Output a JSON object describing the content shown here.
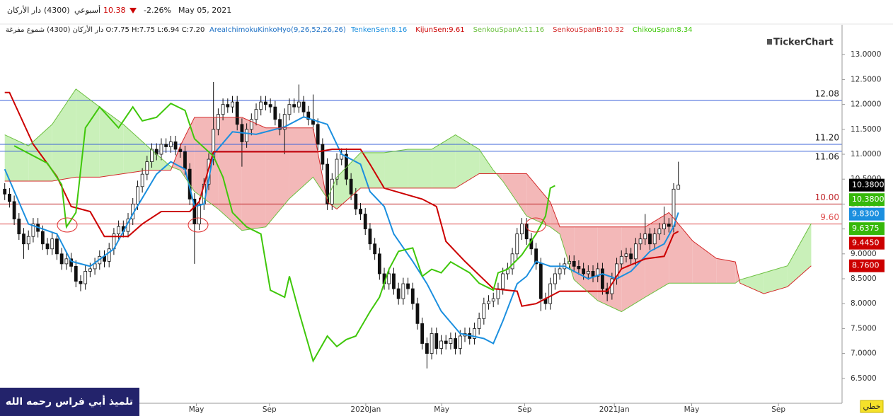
{
  "header": {
    "name": "دار الأركان",
    "code": "(4300)",
    "period": "أسبوعي",
    "price": "10.38",
    "change": "-2.26%",
    "date": "May 05, 2021",
    "info": "دار الأركان (4300) شموع مفرغة O:7.75 H:7.75 L:6.94 C:7.20",
    "indicator": "AreaIchimokuKinkoHyo(9,26,52,26,26)",
    "logo": "TickerChart",
    "footer": "تلميذ أبي فراس رحمه الله",
    "button": "خطي"
  },
  "chart_data": {
    "type": "candlestick",
    "xlim": [
      -1,
      176.5
    ],
    "ylim": [
      6.0,
      13.6
    ],
    "xticks": [
      {
        "value": 40.4,
        "label": "May"
      },
      {
        "value": 55.8,
        "label": "Sep"
      },
      {
        "value": 76.1,
        "label": "2020Jan"
      },
      {
        "value": 92.1,
        "label": "May"
      },
      {
        "value": 109.6,
        "label": "Sep"
      },
      {
        "value": 128.5,
        "label": "2021Jan"
      },
      {
        "value": 144.8,
        "label": "May"
      },
      {
        "value": 163.1,
        "label": "Sep"
      }
    ],
    "yticks": [
      {
        "value": 13,
        "label": "13.0000"
      },
      {
        "value": 12.5,
        "label": "12.5000"
      },
      {
        "value": 12,
        "label": "12.0000"
      },
      {
        "value": 11.5,
        "label": "11.5000"
      },
      {
        "value": 11,
        "label": "11.0000"
      },
      {
        "value": 10.5,
        "label": "10.5000"
      },
      {
        "value": 10,
        "label": "10.0000"
      },
      {
        "value": 9.5,
        "label": "9.5000"
      },
      {
        "value": 9,
        "label": "9.0000"
      },
      {
        "value": 8.5,
        "label": "8.5000"
      },
      {
        "value": 8,
        "label": "8.0000"
      },
      {
        "value": 7.5,
        "label": "7.5000"
      },
      {
        "value": 7,
        "label": "7.0000"
      },
      {
        "value": 6.5,
        "label": "6.5000"
      }
    ],
    "open": [
      10.3,
      10.2,
      10.05,
      9.7,
      9.4,
      9.2,
      9.35,
      9.6,
      9.45,
      9.2,
      9.1,
      9.3,
      9.0,
      8.8,
      8.9,
      8.75,
      8.45,
      8.4,
      8.65,
      8.7,
      8.8,
      8.95,
      8.85,
      9.1,
      9.4,
      9.55,
      9.45,
      9.7,
      10.0,
      10.35,
      10.6,
      10.85,
      11.1,
      11.0,
      11.2,
      11.15,
      11.25,
      11.1,
      11.05,
      10.7,
      10.1,
      9.6,
      10.0,
      10.4,
      10.9,
      11.5,
      11.8,
      12.0,
      11.95,
      12.05,
      11.6,
      11.25,
      11.5,
      11.7,
      11.9,
      12.05,
      12.0,
      11.95,
      11.7,
      11.5,
      11.8,
      12.0,
      11.95,
      12.05,
      11.85,
      11.7,
      11.6,
      11.2,
      10.8,
      10.0,
      10.5,
      10.9,
      11.0,
      10.5,
      10.2,
      9.9,
      9.8,
      9.5,
      9.2,
      9.0,
      8.6,
      8.4,
      8.6,
      8.3,
      8.1,
      8.4,
      8.3,
      8.0,
      7.6,
      7.2,
      7.0,
      7.4,
      7.1,
      7.25,
      7.2,
      7.3,
      7.1,
      7.35,
      7.4,
      7.3,
      7.5,
      7.7,
      8.0,
      8.05,
      8.1,
      8.3,
      8.6,
      8.7,
      9.0,
      9.4,
      9.6,
      9.3,
      9.1,
      8.8,
      8.1,
      8.0,
      8.4,
      8.6,
      8.7,
      8.8,
      8.85,
      8.75,
      8.7,
      8.6,
      8.65,
      8.55,
      8.7,
      8.3,
      8.2,
      8.5,
      8.8,
      8.95,
      9.0,
      8.9,
      9.2,
      9.3,
      9.4,
      9.2,
      9.4,
      9.5,
      9.6,
      9.55,
      10.3
    ],
    "high": [
      10.42,
      10.32,
      10.17,
      9.82,
      9.52,
      9.47,
      9.72,
      9.72,
      9.57,
      9.32,
      9.42,
      9.42,
      9.12,
      9.02,
      9.02,
      8.87,
      8.57,
      8.77,
      8.82,
      8.92,
      9.07,
      9.07,
      9.22,
      9.52,
      9.67,
      9.67,
      9.82,
      10.12,
      10.47,
      10.72,
      10.97,
      11.22,
      11.22,
      11.32,
      11.32,
      11.37,
      11.37,
      11.22,
      11.17,
      10.82,
      10.22,
      10.12,
      10.52,
      11.02,
      12.45,
      11.92,
      12.12,
      12.12,
      12.17,
      12.17,
      11.72,
      11.62,
      11.82,
      12.02,
      12.17,
      12.17,
      12.12,
      12.07,
      11.82,
      11.92,
      12.12,
      12.12,
      12.4,
      12.17,
      11.97,
      12.2,
      11.72,
      11.32,
      10.92,
      10.62,
      11.02,
      11.12,
      11.12,
      10.62,
      10.32,
      10.02,
      9.92,
      9.62,
      9.32,
      9.12,
      8.72,
      8.72,
      8.72,
      8.42,
      8.52,
      8.52,
      8.42,
      8.12,
      7.72,
      7.32,
      7.52,
      7.52,
      7.37,
      7.37,
      7.42,
      7.42,
      7.47,
      7.52,
      7.52,
      7.62,
      7.82,
      8.12,
      8.17,
      8.22,
      8.42,
      8.72,
      8.82,
      9.12,
      9.52,
      9.72,
      9.72,
      9.42,
      9.22,
      8.92,
      8.22,
      8.52,
      8.72,
      8.82,
      8.92,
      8.97,
      8.97,
      8.87,
      8.82,
      8.77,
      8.77,
      8.82,
      8.82,
      8.42,
      8.62,
      8.92,
      9.07,
      9.12,
      9.12,
      9.32,
      9.42,
      9.8,
      9.52,
      9.52,
      9.62,
      9.95,
      9.72,
      10.42,
      10.85
    ],
    "low": [
      10.08,
      9.93,
      9.58,
      9.28,
      8.9,
      9.08,
      9.23,
      9.33,
      9.08,
      8.98,
      8.98,
      8.88,
      8.68,
      8.68,
      8.63,
      8.33,
      8.25,
      8.28,
      8.53,
      8.58,
      8.68,
      8.73,
      8.73,
      8.98,
      9.28,
      9.33,
      9.33,
      9.58,
      9.88,
      10.23,
      10.48,
      10.73,
      10.88,
      10.88,
      11.03,
      11.03,
      10.98,
      10.93,
      10.58,
      9.98,
      8.8,
      9.48,
      9.88,
      10.28,
      10.78,
      11.38,
      11.68,
      11.83,
      11.83,
      11.48,
      10.75,
      11.13,
      11.38,
      11.58,
      11.78,
      11.88,
      11.83,
      11.58,
      11.38,
      11.0,
      11.68,
      11.83,
      11.83,
      11.73,
      11.58,
      11.48,
      11.08,
      10.68,
      9.88,
      9.88,
      10.38,
      10.78,
      10.38,
      10.08,
      9.78,
      9.68,
      9.38,
      9.08,
      8.88,
      8.48,
      8.28,
      8.28,
      8.18,
      7.98,
      7.98,
      8.18,
      7.88,
      7.48,
      7.08,
      6.7,
      6.88,
      6.98,
      6.98,
      7.08,
      7.08,
      6.98,
      6.98,
      7.23,
      7.18,
      7.18,
      7.38,
      7.58,
      7.88,
      7.93,
      7.98,
      8.18,
      8.48,
      8.58,
      8.88,
      9.28,
      9.18,
      8.98,
      8.68,
      7.85,
      7.88,
      7.88,
      8.28,
      8.48,
      8.58,
      8.68,
      8.63,
      8.58,
      8.48,
      8.48,
      8.43,
      8.43,
      8.18,
      8.05,
      8.08,
      8.38,
      8.68,
      8.83,
      8.78,
      8.78,
      9.08,
      9.18,
      9.08,
      9.08,
      9.28,
      9.38,
      9.43,
      9.43,
      10.3
    ],
    "close": [
      10.2,
      10.05,
      9.7,
      9.4,
      9.2,
      9.35,
      9.6,
      9.45,
      9.2,
      9.1,
      9.3,
      9.0,
      8.8,
      8.9,
      8.75,
      8.45,
      8.4,
      8.65,
      8.7,
      8.8,
      8.95,
      8.85,
      9.1,
      9.4,
      9.55,
      9.45,
      9.7,
      10.0,
      10.35,
      10.6,
      10.85,
      11.1,
      11.0,
      11.2,
      11.15,
      11.25,
      11.1,
      11.05,
      10.7,
      10.1,
      9.6,
      10.0,
      10.4,
      10.9,
      11.5,
      11.8,
      12.0,
      11.95,
      12.05,
      11.6,
      11.25,
      11.5,
      11.7,
      11.9,
      12.05,
      12.0,
      11.95,
      11.7,
      11.5,
      11.8,
      12.0,
      11.95,
      12.05,
      11.85,
      11.7,
      11.6,
      11.2,
      10.8,
      10.0,
      10.5,
      10.9,
      11.0,
      10.5,
      10.2,
      9.9,
      9.8,
      9.5,
      9.2,
      9.0,
      8.6,
      8.4,
      8.6,
      8.3,
      8.1,
      8.4,
      8.3,
      8.0,
      7.6,
      7.2,
      7.0,
      7.4,
      7.1,
      7.25,
      7.2,
      7.3,
      7.1,
      7.35,
      7.4,
      7.3,
      7.5,
      7.7,
      8.0,
      8.05,
      8.1,
      8.3,
      8.6,
      8.7,
      9.0,
      9.4,
      9.6,
      9.3,
      9.1,
      8.8,
      8.1,
      8.0,
      8.4,
      8.6,
      8.7,
      8.8,
      8.85,
      8.75,
      8.7,
      8.6,
      8.65,
      8.55,
      8.7,
      8.3,
      8.2,
      8.5,
      8.8,
      8.95,
      9.0,
      8.9,
      9.2,
      9.3,
      9.4,
      9.2,
      9.4,
      9.5,
      9.6,
      9.55,
      10.3,
      10.38
    ],
    "series": [
      {
        "name": "TenkenSen:8.16",
        "color": "#1b8fdf",
        "x": [
          0,
          5,
          11,
          14,
          18,
          23,
          27,
          32,
          35,
          38,
          40,
          42,
          44,
          48,
          53,
          59,
          63,
          68,
          71,
          75,
          77,
          80,
          82,
          86,
          89,
          92,
          96,
          101,
          103,
          105,
          108,
          110,
          112,
          115,
          118,
          123,
          126,
          129,
          132,
          136,
          139,
          141,
          142
        ],
        "values": [
          10.7,
          9.6,
          9.4,
          8.85,
          8.75,
          9.1,
          9.8,
          10.6,
          10.85,
          10.7,
          9.95,
          10.0,
          11.0,
          11.45,
          11.4,
          11.55,
          11.75,
          11.6,
          11.0,
          10.8,
          10.25,
          9.95,
          9.4,
          8.85,
          8.4,
          7.85,
          7.4,
          7.3,
          7.2,
          7.65,
          8.4,
          8.55,
          8.85,
          8.75,
          8.75,
          8.5,
          8.6,
          8.5,
          8.65,
          9.05,
          9.2,
          9.55,
          9.83
        ]
      },
      {
        "name": "KijunSen:9.61",
        "color": "#cc0000",
        "x": [
          0,
          1,
          6,
          11,
          14,
          18,
          21,
          26,
          29,
          33,
          39,
          41,
          44,
          66,
          69,
          75,
          77,
          80,
          88,
          91,
          93,
          97,
          103,
          108,
          109,
          112,
          117,
          127,
          130,
          135,
          139,
          141,
          142
        ],
        "values": [
          12.24,
          12.24,
          11.2,
          10.55,
          9.95,
          9.85,
          9.35,
          9.35,
          9.6,
          9.85,
          9.85,
          10.05,
          11.05,
          11.05,
          11.1,
          11.1,
          10.8,
          10.32,
          10.1,
          9.95,
          9.25,
          8.85,
          8.3,
          8.25,
          7.95,
          8.0,
          8.25,
          8.25,
          8.7,
          8.9,
          8.95,
          9.4,
          9.45
        ]
      },
      {
        "name": "SenkouSpanA:11.16",
        "color": "#6cc040",
        "x": [
          0,
          5,
          10,
          15,
          20,
          25,
          30,
          35,
          37,
          40,
          45,
          50,
          55,
          60,
          65,
          68,
          70,
          75,
          80,
          85,
          90,
          95,
          100,
          103,
          105,
          110,
          115,
          117,
          120,
          125,
          130,
          135,
          140,
          145,
          150,
          154,
          155,
          160,
          165,
          170
        ],
        "values": [
          11.39,
          11.17,
          11.6,
          12.31,
          11.95,
          11.6,
          11.17,
          10.75,
          10.68,
          10.25,
          9.9,
          9.47,
          9.54,
          10.11,
          10.54,
          10.11,
          10.54,
          11.03,
          11.03,
          11.1,
          11.1,
          11.39,
          11.1,
          10.68,
          10.46,
          9.76,
          9.54,
          9.4,
          8.48,
          8.06,
          7.84,
          8.13,
          8.41,
          8.41,
          8.41,
          8.41,
          8.48,
          8.62,
          8.76,
          9.61
        ]
      },
      {
        "name": "SenkouSpanB:10.32",
        "color": "#d42a2a",
        "x": [
          0,
          5,
          10,
          15,
          20,
          25,
          30,
          35,
          37,
          40,
          45,
          50,
          55,
          60,
          65,
          68,
          70,
          75,
          80,
          85,
          90,
          95,
          100,
          103,
          105,
          110,
          115,
          117,
          120,
          125,
          130,
          135,
          140,
          145,
          150,
          154,
          155,
          160,
          165,
          170
        ],
        "values": [
          10.46,
          10.46,
          10.46,
          10.54,
          10.54,
          10.61,
          10.68,
          10.68,
          11.17,
          11.74,
          11.74,
          11.74,
          11.53,
          11.53,
          11.53,
          10.04,
          9.9,
          10.32,
          10.32,
          10.32,
          10.32,
          10.32,
          10.61,
          10.61,
          10.61,
          10.61,
          10.04,
          9.54,
          9.54,
          9.54,
          9.54,
          9.54,
          9.83,
          9.26,
          8.91,
          8.84,
          8.41,
          8.2,
          8.34,
          8.76
        ]
      },
      {
        "name": "ChikouSpan:8.34",
        "color": "#3fc70a",
        "x": [
          2,
          9,
          12,
          13,
          15,
          17,
          20,
          24,
          27,
          29,
          32,
          35,
          38,
          40,
          44,
          46,
          48,
          51,
          54,
          56,
          59,
          60,
          62,
          65,
          68,
          70,
          72,
          74,
          77,
          79,
          81,
          83,
          86,
          88,
          90,
          92,
          94,
          98,
          100,
          103,
          104,
          106,
          109,
          112,
          114,
          115,
          116
        ],
        "values": [
          11.17,
          10.82,
          10.39,
          9.54,
          9.83,
          11.53,
          11.95,
          11.53,
          11.95,
          11.67,
          11.74,
          12.02,
          11.88,
          11.31,
          10.96,
          10.54,
          9.83,
          9.54,
          9.4,
          8.27,
          8.13,
          8.55,
          7.84,
          6.85,
          7.35,
          7.14,
          7.28,
          7.35,
          7.84,
          8.13,
          8.69,
          9.05,
          9.12,
          8.55,
          8.69,
          8.62,
          8.84,
          8.62,
          8.41,
          8.27,
          8.62,
          8.69,
          8.98,
          9.4,
          9.76,
          10.32,
          10.37
        ]
      }
    ],
    "cloud_colors": [
      "#c9f0b9",
      "#f3b8b8"
    ],
    "levels": [
      {
        "value": 12.08,
        "label": "12.08",
        "color": "#3d63d8"
      },
      {
        "value": 11.2,
        "label": "11.20",
        "color": "#3d63d8"
      },
      {
        "value": 11.06,
        "label": "11.06",
        "color": "#3d63d8"
      },
      {
        "value": 10.0,
        "label": "10.00",
        "color": "#c0282d"
      },
      {
        "value": 9.6,
        "label": "9.60",
        "color": "#e05050"
      }
    ],
    "price_tags": [
      {
        "value": 10.38,
        "label": "10.3800",
        "color": "#000000"
      },
      {
        "value": 10.38,
        "label": "10.3800",
        "color": "#36b80a"
      },
      {
        "value": 9.83,
        "label": "9.8300",
        "color": "#1b8fdf"
      },
      {
        "value": 9.6375,
        "label": "9.6375",
        "color": "#36b80a"
      },
      {
        "value": 9.445,
        "label": "9.4450",
        "color": "#cc0000"
      },
      {
        "value": 8.76,
        "label": "8.7600",
        "color": "#cc0000"
      }
    ]
  }
}
